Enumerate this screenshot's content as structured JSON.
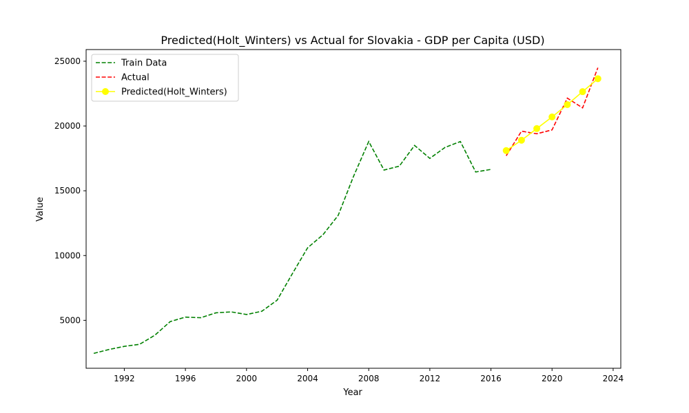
{
  "chart_data": {
    "type": "line",
    "title": "Predicted(Holt_Winters) vs Actual for Slovakia - GDP per Capita (USD)",
    "xlabel": "Year",
    "ylabel": "Value",
    "xlim": [
      1989.5,
      2024.5
    ],
    "ylim": [
      1300,
      25900
    ],
    "xticks": [
      1992,
      1996,
      2000,
      2004,
      2008,
      2012,
      2016,
      2020,
      2024
    ],
    "yticks": [
      5000,
      10000,
      15000,
      20000,
      25000
    ],
    "grid": false,
    "legend_position": "upper-left",
    "series": [
      {
        "name": "Train Data",
        "color": "#008000",
        "style": "dashed",
        "marker": "none",
        "x": [
          1990,
          1991,
          1992,
          1993,
          1994,
          1995,
          1996,
          1997,
          1998,
          1999,
          2000,
          2001,
          2002,
          2003,
          2004,
          2005,
          2006,
          2007,
          2008,
          2009,
          2010,
          2011,
          2012,
          2013,
          2014,
          2015,
          2016
        ],
        "y": [
          2450,
          2750,
          2990,
          3150,
          3850,
          4900,
          5250,
          5200,
          5580,
          5650,
          5450,
          5700,
          6550,
          8600,
          10600,
          11600,
          13100,
          16100,
          18800,
          16600,
          16900,
          18500,
          17500,
          18350,
          18800,
          16450,
          16650
        ]
      },
      {
        "name": "Actual",
        "color": "#ff0000",
        "style": "dashed",
        "marker": "none",
        "x": [
          2017,
          2018,
          2019,
          2020,
          2021,
          2022,
          2023
        ],
        "y": [
          17700,
          19600,
          19400,
          19700,
          22150,
          21400,
          24500
        ]
      },
      {
        "name": "Predicted(Holt_Winters)",
        "color": "#ffff00",
        "style": "solid",
        "marker": "circle",
        "x": [
          2017,
          2018,
          2019,
          2020,
          2021,
          2022,
          2023
        ],
        "y": [
          18100,
          18900,
          19800,
          20700,
          21650,
          22650,
          23650
        ]
      }
    ]
  }
}
